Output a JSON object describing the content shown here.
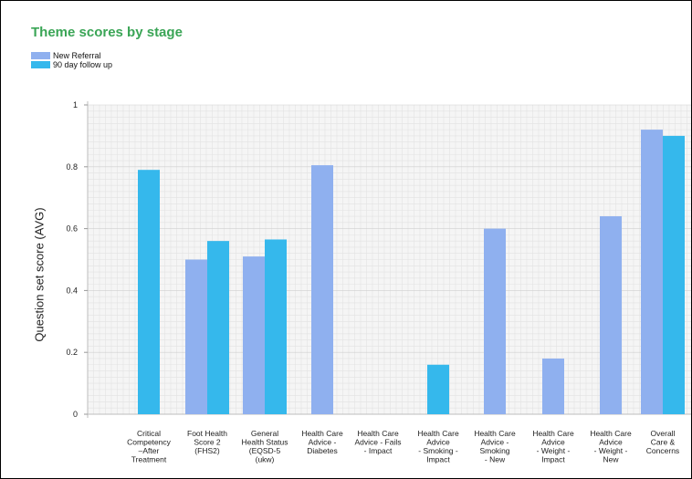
{
  "chart_data": {
    "type": "bar",
    "title": "Theme scores by stage",
    "ylabel": "Question set score (AVG)",
    "xlabel": "",
    "ylim": [
      0,
      1
    ],
    "yticks": [
      "0",
      "0.2",
      "0.4",
      "0.6",
      "0.8",
      "1"
    ],
    "grid": true,
    "legend_position": "top-left",
    "categories": [
      [
        "Critical",
        "Competency",
        "–After",
        "Treatment"
      ],
      [
        "Foot Health",
        "Score 2",
        "(FHS2)"
      ],
      [
        "General",
        "Health Status",
        "(EQSD-5",
        "(ukw)"
      ],
      [
        "Health Care",
        "Advice -",
        "Diabetes"
      ],
      [
        "Health Care",
        "Advice - Fails",
        "- Impact"
      ],
      [
        "Health Care",
        "Advice",
        "- Smoking -",
        "Impact"
      ],
      [
        "Health Care",
        "Advice -",
        "Smoking",
        "- New"
      ],
      [
        "Health Care",
        "Advice",
        "- Weight -",
        "Impact"
      ],
      [
        "Health Care",
        "Advice",
        "- Weight -",
        "New"
      ],
      [
        "Overall",
        "Care &",
        "Concerns"
      ]
    ],
    "series": [
      {
        "name": "New Referral",
        "color": "#8fb0ef",
        "values": [
          null,
          0.5,
          0.51,
          0.805,
          null,
          null,
          0.6,
          0.18,
          0.64,
          0.92
        ]
      },
      {
        "name": "90 day follow up",
        "color": "#35b8ec",
        "values": [
          0.79,
          0.56,
          0.565,
          null,
          null,
          0.16,
          null,
          null,
          null,
          0.9
        ]
      }
    ]
  }
}
